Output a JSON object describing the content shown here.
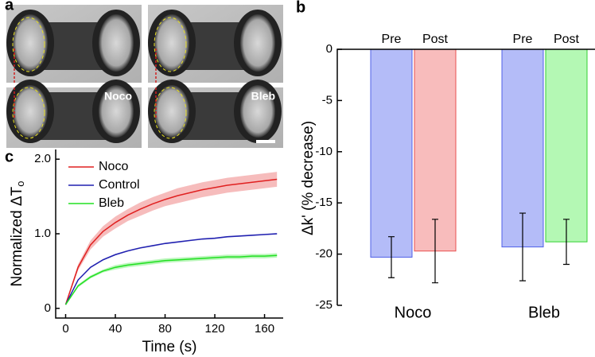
{
  "panels": {
    "a": "a",
    "b": "b",
    "c": "c"
  },
  "images": {
    "labels": [
      "Noco",
      "Bleb"
    ]
  },
  "chart_data": [
    {
      "type": "line",
      "xlabel": "Time (s)",
      "ylabel": "Normalized ΔT",
      "ylabel_subscript": "o",
      "x": [
        0,
        10,
        20,
        30,
        40,
        50,
        60,
        70,
        80,
        90,
        100,
        110,
        120,
        130,
        140,
        150,
        160,
        170
      ],
      "series": [
        {
          "name": "Noco",
          "color": "#e02020",
          "values": [
            0.05,
            0.55,
            0.85,
            1.03,
            1.15,
            1.25,
            1.33,
            1.4,
            1.46,
            1.51,
            1.55,
            1.59,
            1.62,
            1.65,
            1.67,
            1.69,
            1.71,
            1.73
          ],
          "errors": [
            0.01,
            0.04,
            0.06,
            0.07,
            0.08,
            0.08,
            0.09,
            0.09,
            0.09,
            0.1,
            0.1,
            0.1,
            0.1,
            0.1,
            0.1,
            0.1,
            0.1,
            0.1
          ]
        },
        {
          "name": "Control",
          "color": "#2020b0",
          "values": [
            0.05,
            0.38,
            0.55,
            0.65,
            0.72,
            0.77,
            0.81,
            0.84,
            0.87,
            0.89,
            0.91,
            0.93,
            0.94,
            0.96,
            0.97,
            0.98,
            0.99,
            1.0
          ],
          "errors": [
            0.005,
            0.01,
            0.01,
            0.01,
            0.01,
            0.01,
            0.01,
            0.01,
            0.01,
            0.01,
            0.01,
            0.01,
            0.01,
            0.01,
            0.01,
            0.01,
            0.01,
            0.01
          ]
        },
        {
          "name": "Bleb",
          "color": "#20e020",
          "values": [
            0.05,
            0.3,
            0.42,
            0.5,
            0.55,
            0.58,
            0.6,
            0.62,
            0.64,
            0.65,
            0.66,
            0.67,
            0.68,
            0.69,
            0.69,
            0.7,
            0.7,
            0.71
          ],
          "errors": [
            0.005,
            0.02,
            0.02,
            0.02,
            0.03,
            0.03,
            0.03,
            0.03,
            0.03,
            0.03,
            0.03,
            0.03,
            0.03,
            0.03,
            0.03,
            0.03,
            0.03,
            0.03
          ]
        }
      ],
      "xlim": [
        -8,
        175
      ],
      "xticks": [
        0,
        40,
        80,
        120,
        160
      ],
      "ylim": [
        -0.13,
        2.13
      ],
      "yticks": [
        0,
        {
          "value": 1,
          "label": "1.0"
        },
        {
          "value": 2,
          "label": "2.0"
        }
      ],
      "legend": "upper-left"
    },
    {
      "type": "bar",
      "ylabel": "Δk' (% decrease)",
      "categories": [
        "Noco",
        "Bleb"
      ],
      "series": [
        {
          "name": "Pre",
          "colors": [
            "#b4bcf8",
            "#b4bcf8"
          ],
          "edge": "#5060e8",
          "values": [
            -20.3,
            -19.3
          ],
          "errors": [
            2.0,
            3.3
          ]
        },
        {
          "name": "Post",
          "colors": [
            "#f8bcbc",
            "#b4f8b4"
          ],
          "edges": [
            "#e85050",
            "#30d030"
          ],
          "values": [
            -19.7,
            -18.8
          ],
          "errors": [
            3.1,
            2.2
          ]
        }
      ],
      "ylim": [
        -25,
        0
      ],
      "yticks": [
        0,
        -5,
        -10,
        -15,
        -20,
        -25
      ]
    }
  ]
}
